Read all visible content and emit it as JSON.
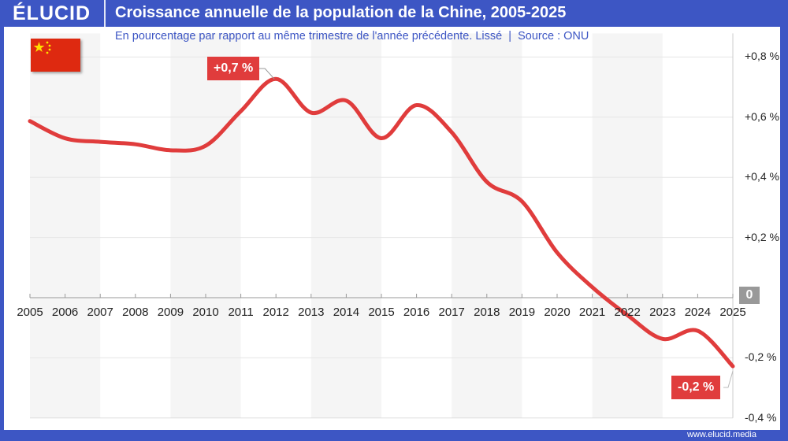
{
  "header": {
    "logo": "ÉLUCID",
    "title": "Croissance annuelle de la population de la Chine, 2005-2025"
  },
  "subtitle": "En pourcentage par rapport au même trimestre de l'année précédente. Lissé  |  Source : ONU",
  "footer": "www.elucid.media",
  "colors": {
    "brand": "#3d56c4",
    "line": "#e03c3c",
    "flag": "#de2910",
    "band": "#f5f5f5"
  },
  "chart_data": {
    "type": "line",
    "title": "Croissance annuelle de la population de la Chine, 2005-2025",
    "x": [
      2005,
      2006,
      2007,
      2008,
      2009,
      2010,
      2011,
      2012,
      2013,
      2014,
      2015,
      2016,
      2017,
      2018,
      2019,
      2020,
      2021,
      2022,
      2023,
      2024,
      2025
    ],
    "series": [
      {
        "values": [
          0.587,
          0.53,
          0.518,
          0.51,
          0.49,
          0.505,
          0.62,
          0.727,
          0.615,
          0.655,
          0.53,
          0.64,
          0.55,
          0.385,
          0.32,
          0.15,
          0.035,
          -0.058,
          -0.137,
          -0.11,
          -0.228
        ]
      }
    ],
    "xlim": [
      2005,
      2025
    ],
    "ylim": [
      -0.4,
      0.8
    ],
    "x_tick_labels": [
      "2005",
      "2006",
      "2007",
      "2008",
      "2009",
      "2010",
      "2011",
      "2012",
      "2013",
      "2014",
      "2015",
      "2016",
      "2017",
      "2018",
      "2019",
      "2020",
      "2021",
      "2022",
      "2023",
      "2024",
      "2025"
    ],
    "y_tick_labels": [
      "+0,8 %",
      "+0,6 %",
      "+0,4 %",
      "+0,2 %",
      "0",
      "-0,2 %",
      "-0,4 %"
    ],
    "y_ticks": [
      0.8,
      0.6,
      0.4,
      0.2,
      0,
      -0.2,
      -0.4
    ],
    "annotations": [
      {
        "label": "+0,7 %",
        "x": 2012,
        "y": 0.727
      },
      {
        "label": "-0,2 %",
        "x": 2025,
        "y": -0.228
      }
    ],
    "grid": true,
    "axis_position": "right"
  }
}
